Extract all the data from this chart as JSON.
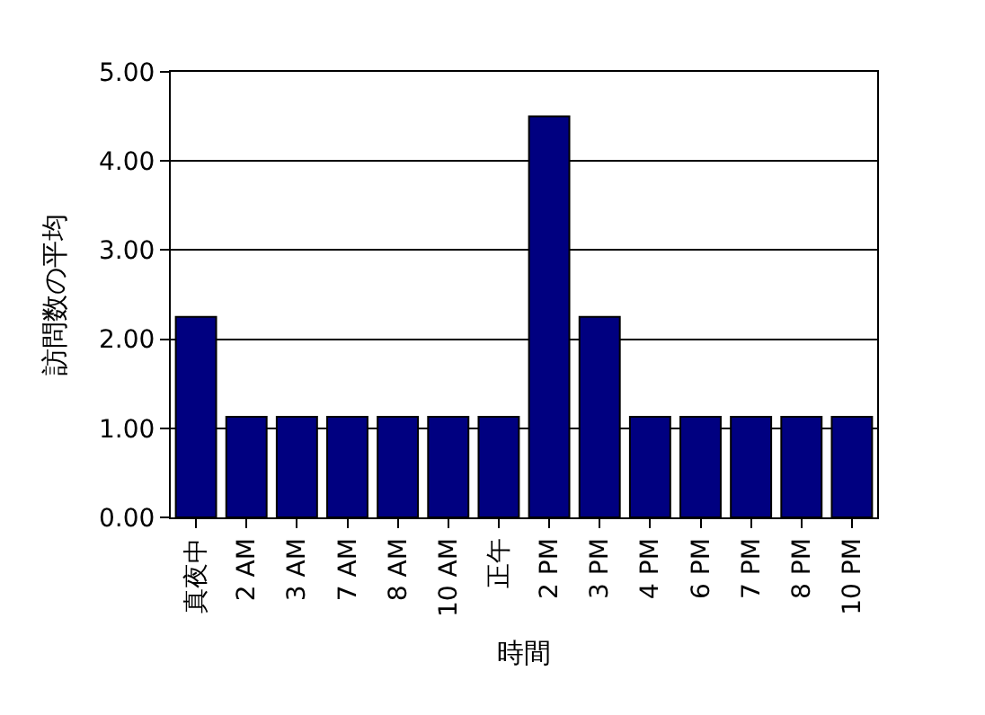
{
  "chart_data": {
    "type": "bar",
    "xlabel": "時間",
    "ylabel": "訪問数の平均",
    "categories": [
      "真夜中",
      "2 AM",
      "3 AM",
      "7 AM",
      "8 AM",
      "10 AM",
      "正午",
      "2 PM",
      "3 PM",
      "4 PM",
      "6 PM",
      "7 PM",
      "8 PM",
      "10 PM"
    ],
    "values": [
      2.25,
      1.13,
      1.13,
      1.13,
      1.13,
      1.13,
      1.13,
      4.5,
      2.25,
      1.13,
      1.13,
      1.13,
      1.13,
      1.13
    ],
    "color": "#000080",
    "ylim": [
      0,
      5
    ],
    "yticks": [
      {
        "value": 0,
        "label": "0.00"
      },
      {
        "value": 1,
        "label": "1.00"
      },
      {
        "value": 2,
        "label": "2.00"
      },
      {
        "value": 3,
        "label": "3.00"
      },
      {
        "value": 4,
        "label": "4.00"
      },
      {
        "value": 5,
        "label": "5.00"
      }
    ],
    "grid": "y",
    "legend": false
  }
}
